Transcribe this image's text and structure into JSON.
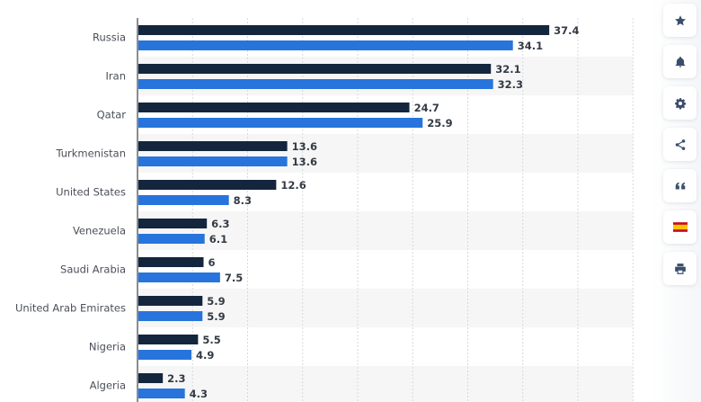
{
  "chart_data": {
    "type": "bar",
    "orientation": "horizontal",
    "categories": [
      "Russia",
      "Iran",
      "Qatar",
      "Turkmenistan",
      "United States",
      "Venezuela",
      "Saudi Arabia",
      "United Arab Emirates",
      "Nigeria",
      "Algeria"
    ],
    "series": [
      {
        "name": "series-1",
        "color": "#13263d",
        "values": [
          37.4,
          32.1,
          24.7,
          13.6,
          12.6,
          6.3,
          6,
          5.9,
          5.5,
          2.3
        ],
        "labels": [
          "37.4",
          "32.1",
          "24.7",
          "13.6",
          "12.6",
          "6.3",
          "6",
          "5.9",
          "5.5",
          "2.3"
        ]
      },
      {
        "name": "series-2",
        "color": "#2774dc",
        "values": [
          34.1,
          32.3,
          25.9,
          13.6,
          8.3,
          6.1,
          7.5,
          5.9,
          4.9,
          4.3
        ],
        "labels": [
          "34.1",
          "32.3",
          "25.9",
          "13.6",
          "8.3",
          "6.1",
          "7.5",
          "5.9",
          "4.9",
          "4.3"
        ]
      }
    ],
    "xlim": [
      0,
      45
    ],
    "grid_step": 5,
    "grid": true,
    "alternating_row_bg": "#f6f6f6"
  },
  "sidebar": {
    "buttons": [
      {
        "icon": "star-icon"
      },
      {
        "icon": "bell-icon"
      },
      {
        "icon": "gear-icon"
      },
      {
        "icon": "share-icon"
      },
      {
        "icon": "quote-icon"
      },
      {
        "icon": "spain-flag-icon"
      },
      {
        "icon": "print-icon"
      }
    ]
  }
}
